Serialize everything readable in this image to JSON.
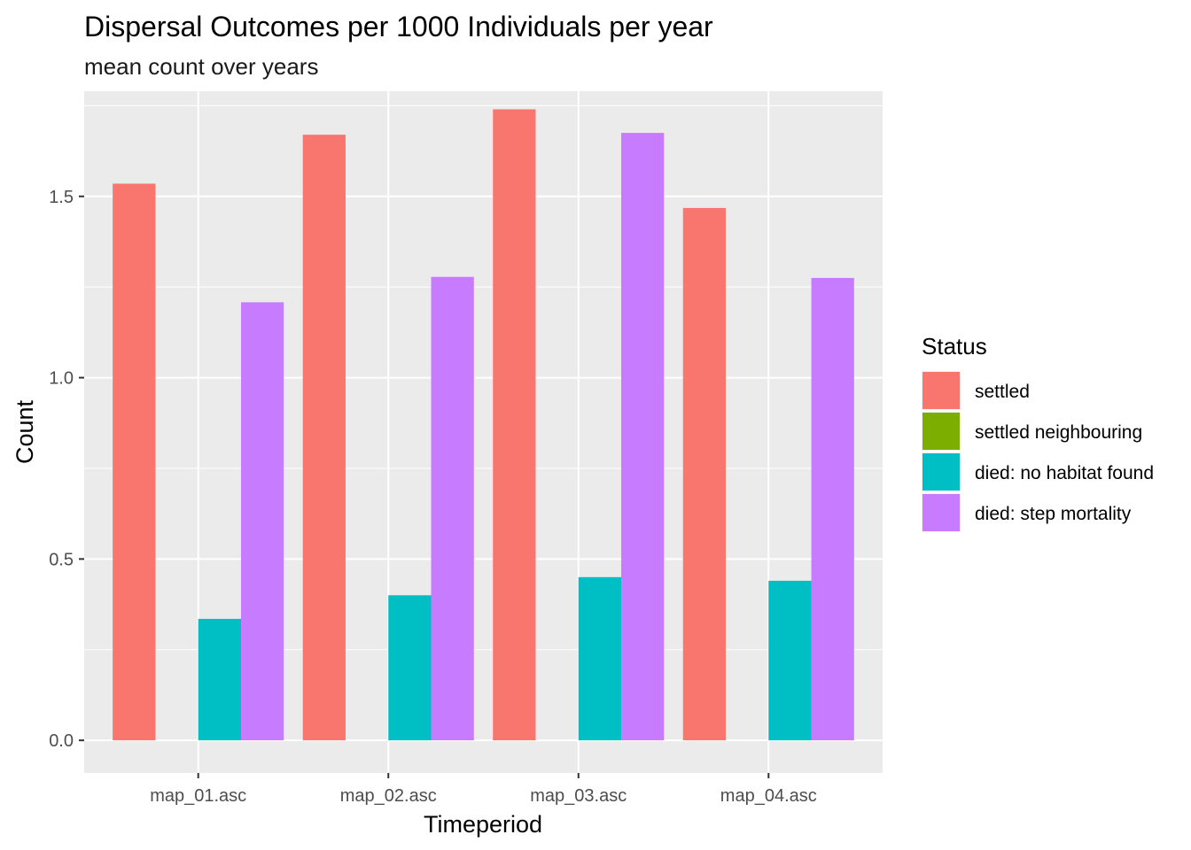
{
  "chart_data": {
    "type": "bar",
    "title": "Dispersal Outcomes per 1000 Individuals per year",
    "subtitle": "mean count over years",
    "xlabel": "Timeperiod",
    "ylabel": "Count",
    "categories": [
      "map_01.asc",
      "map_02.asc",
      "map_03.asc",
      "map_04.asc"
    ],
    "ylim": [
      -0.09,
      1.79
    ],
    "yticks": [
      0.0,
      0.5,
      1.0,
      1.5
    ],
    "ytick_labels": [
      "0.0",
      "0.5",
      "1.0",
      "1.5"
    ],
    "grid": true,
    "legend": {
      "title": "Status",
      "position": "right"
    },
    "series": [
      {
        "name": "settled",
        "color": "#F8766D",
        "values": [
          1.535,
          1.67,
          1.74,
          1.468
        ]
      },
      {
        "name": "settled neighbouring",
        "color": "#7CAE00",
        "values": [
          0,
          0,
          0,
          0
        ]
      },
      {
        "name": "died: no habitat found",
        "color": "#00BFC4",
        "values": [
          0.335,
          0.4,
          0.45,
          0.44
        ]
      },
      {
        "name": "died: step mortality",
        "color": "#C77CFF",
        "values": [
          1.208,
          1.278,
          1.675,
          1.275
        ]
      }
    ]
  }
}
